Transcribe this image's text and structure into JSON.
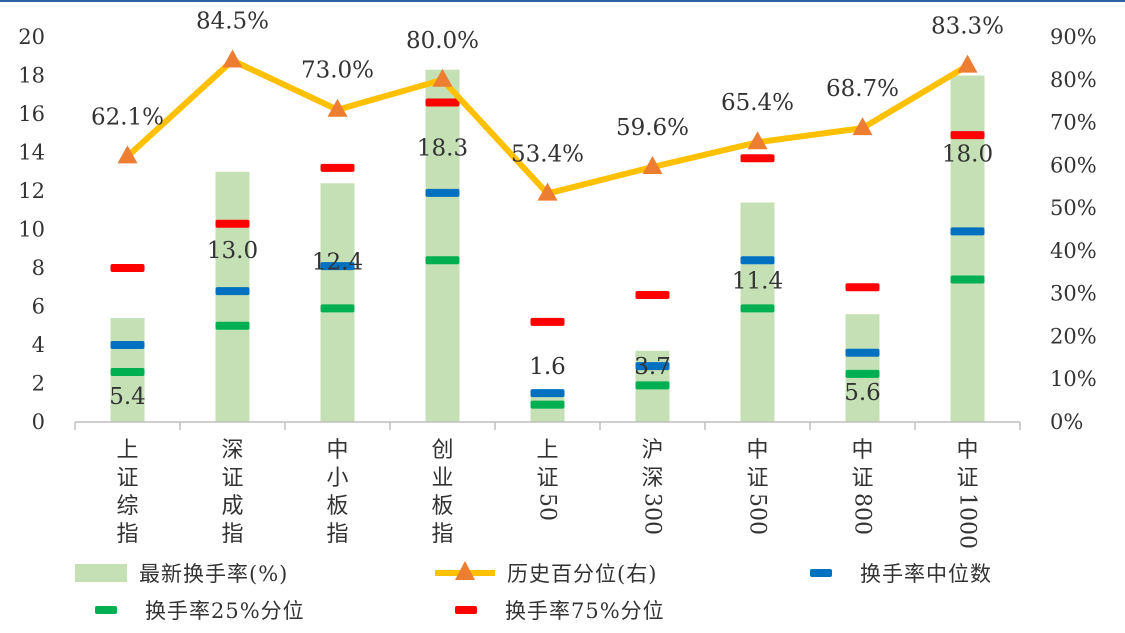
{
  "chart_data": {
    "type": "bar",
    "categories": [
      "上证综指",
      "深证成指",
      "中小板指",
      "创业板指",
      "上证50",
      "沪深300",
      "中证500",
      "中证800",
      "中证1000"
    ],
    "y_left": {
      "min": 0,
      "max": 20,
      "step": 2,
      "ticks": [
        "0",
        "2",
        "4",
        "6",
        "8",
        "10",
        "12",
        "14",
        "16",
        "18",
        "20"
      ]
    },
    "y_right": {
      "min": 0,
      "max": 90,
      "step": 10,
      "ticks": [
        "0%",
        "10%",
        "20%",
        "30%",
        "40%",
        "50%",
        "60%",
        "70%",
        "80%",
        "90%"
      ]
    },
    "series": [
      {
        "name": "最新换手率(%)",
        "kind": "bar",
        "axis": "left",
        "color": "#c5e0b4",
        "values": [
          5.4,
          13.0,
          12.4,
          18.3,
          1.6,
          3.7,
          11.4,
          5.6,
          18.0
        ],
        "labels": [
          "5.4",
          "13.0",
          "12.4",
          "18.3",
          "1.6",
          "3.7",
          "11.4",
          "5.6",
          "18.0"
        ]
      },
      {
        "name": "历史百分位(右)",
        "kind": "line",
        "axis": "right",
        "color": "#ffc000",
        "marker_color": "#ed7d31",
        "values": [
          62.1,
          84.5,
          73.0,
          80.0,
          53.4,
          59.6,
          65.4,
          68.7,
          83.3
        ],
        "labels": [
          "62.1%",
          "84.5%",
          "73.0%",
          "80.0%",
          "53.4%",
          "59.6%",
          "65.4%",
          "68.7%",
          "83.3%"
        ]
      },
      {
        "name": "换手率中位数",
        "kind": "dash",
        "axis": "left",
        "color": "#0070c0",
        "values": [
          4.0,
          6.8,
          8.1,
          11.9,
          1.5,
          2.9,
          8.4,
          3.6,
          9.9
        ]
      },
      {
        "name": "换手率25%分位",
        "kind": "dash",
        "axis": "left",
        "color": "#00b050",
        "values": [
          2.6,
          5.0,
          5.9,
          8.4,
          0.9,
          1.9,
          5.9,
          2.5,
          7.4
        ]
      },
      {
        "name": "换手率75%分位",
        "kind": "dash",
        "axis": "left",
        "color": "#ff0000",
        "values": [
          8.0,
          10.3,
          13.2,
          16.6,
          5.2,
          6.6,
          13.7,
          7.0,
          14.9
        ]
      }
    ],
    "legend": "bottom",
    "grid": false
  }
}
